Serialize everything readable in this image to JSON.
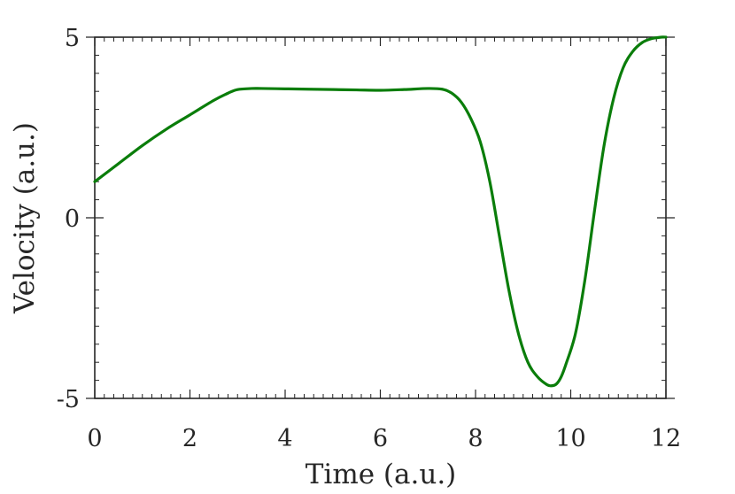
{
  "chart_data": {
    "type": "line",
    "xlabel": "Time (a.u.)",
    "ylabel": "Velocity (a.u.)",
    "xlim": [
      0,
      12
    ],
    "ylim": [
      -5,
      5
    ],
    "x_ticks": [
      0,
      2,
      4,
      6,
      8,
      10,
      12
    ],
    "y_ticks": [
      -5,
      0,
      5
    ],
    "x_minor_step": 0.2,
    "y_minor_step": 0.5,
    "grid": false,
    "box": true,
    "series": [
      {
        "color": "#0a7d0a",
        "x": [
          0,
          0.5,
          1,
          1.5,
          2,
          2.5,
          2.8,
          3,
          3.3,
          3.5,
          4,
          4.5,
          5,
          5.5,
          6,
          6.5,
          7,
          7.3,
          7.5,
          7.7,
          7.9,
          8.1,
          8.3,
          8.5,
          8.7,
          8.9,
          9.1,
          9.3,
          9.5,
          9.6,
          9.7,
          9.8,
          9.9,
          10.1,
          10.3,
          10.5,
          10.7,
          10.9,
          11.1,
          11.3,
          11.5,
          11.7,
          11.9,
          12
        ],
        "y": [
          1.0,
          1.5,
          2.0,
          2.45,
          2.85,
          3.25,
          3.45,
          3.55,
          3.58,
          3.58,
          3.57,
          3.56,
          3.55,
          3.54,
          3.53,
          3.55,
          3.58,
          3.56,
          3.45,
          3.2,
          2.75,
          2.1,
          1.0,
          -0.5,
          -2.0,
          -3.2,
          -4.0,
          -4.4,
          -4.62,
          -4.65,
          -4.6,
          -4.4,
          -4.05,
          -3.2,
          -1.7,
          0.2,
          2.0,
          3.3,
          4.15,
          4.6,
          4.85,
          4.96,
          5.0,
          5.0
        ]
      }
    ]
  }
}
